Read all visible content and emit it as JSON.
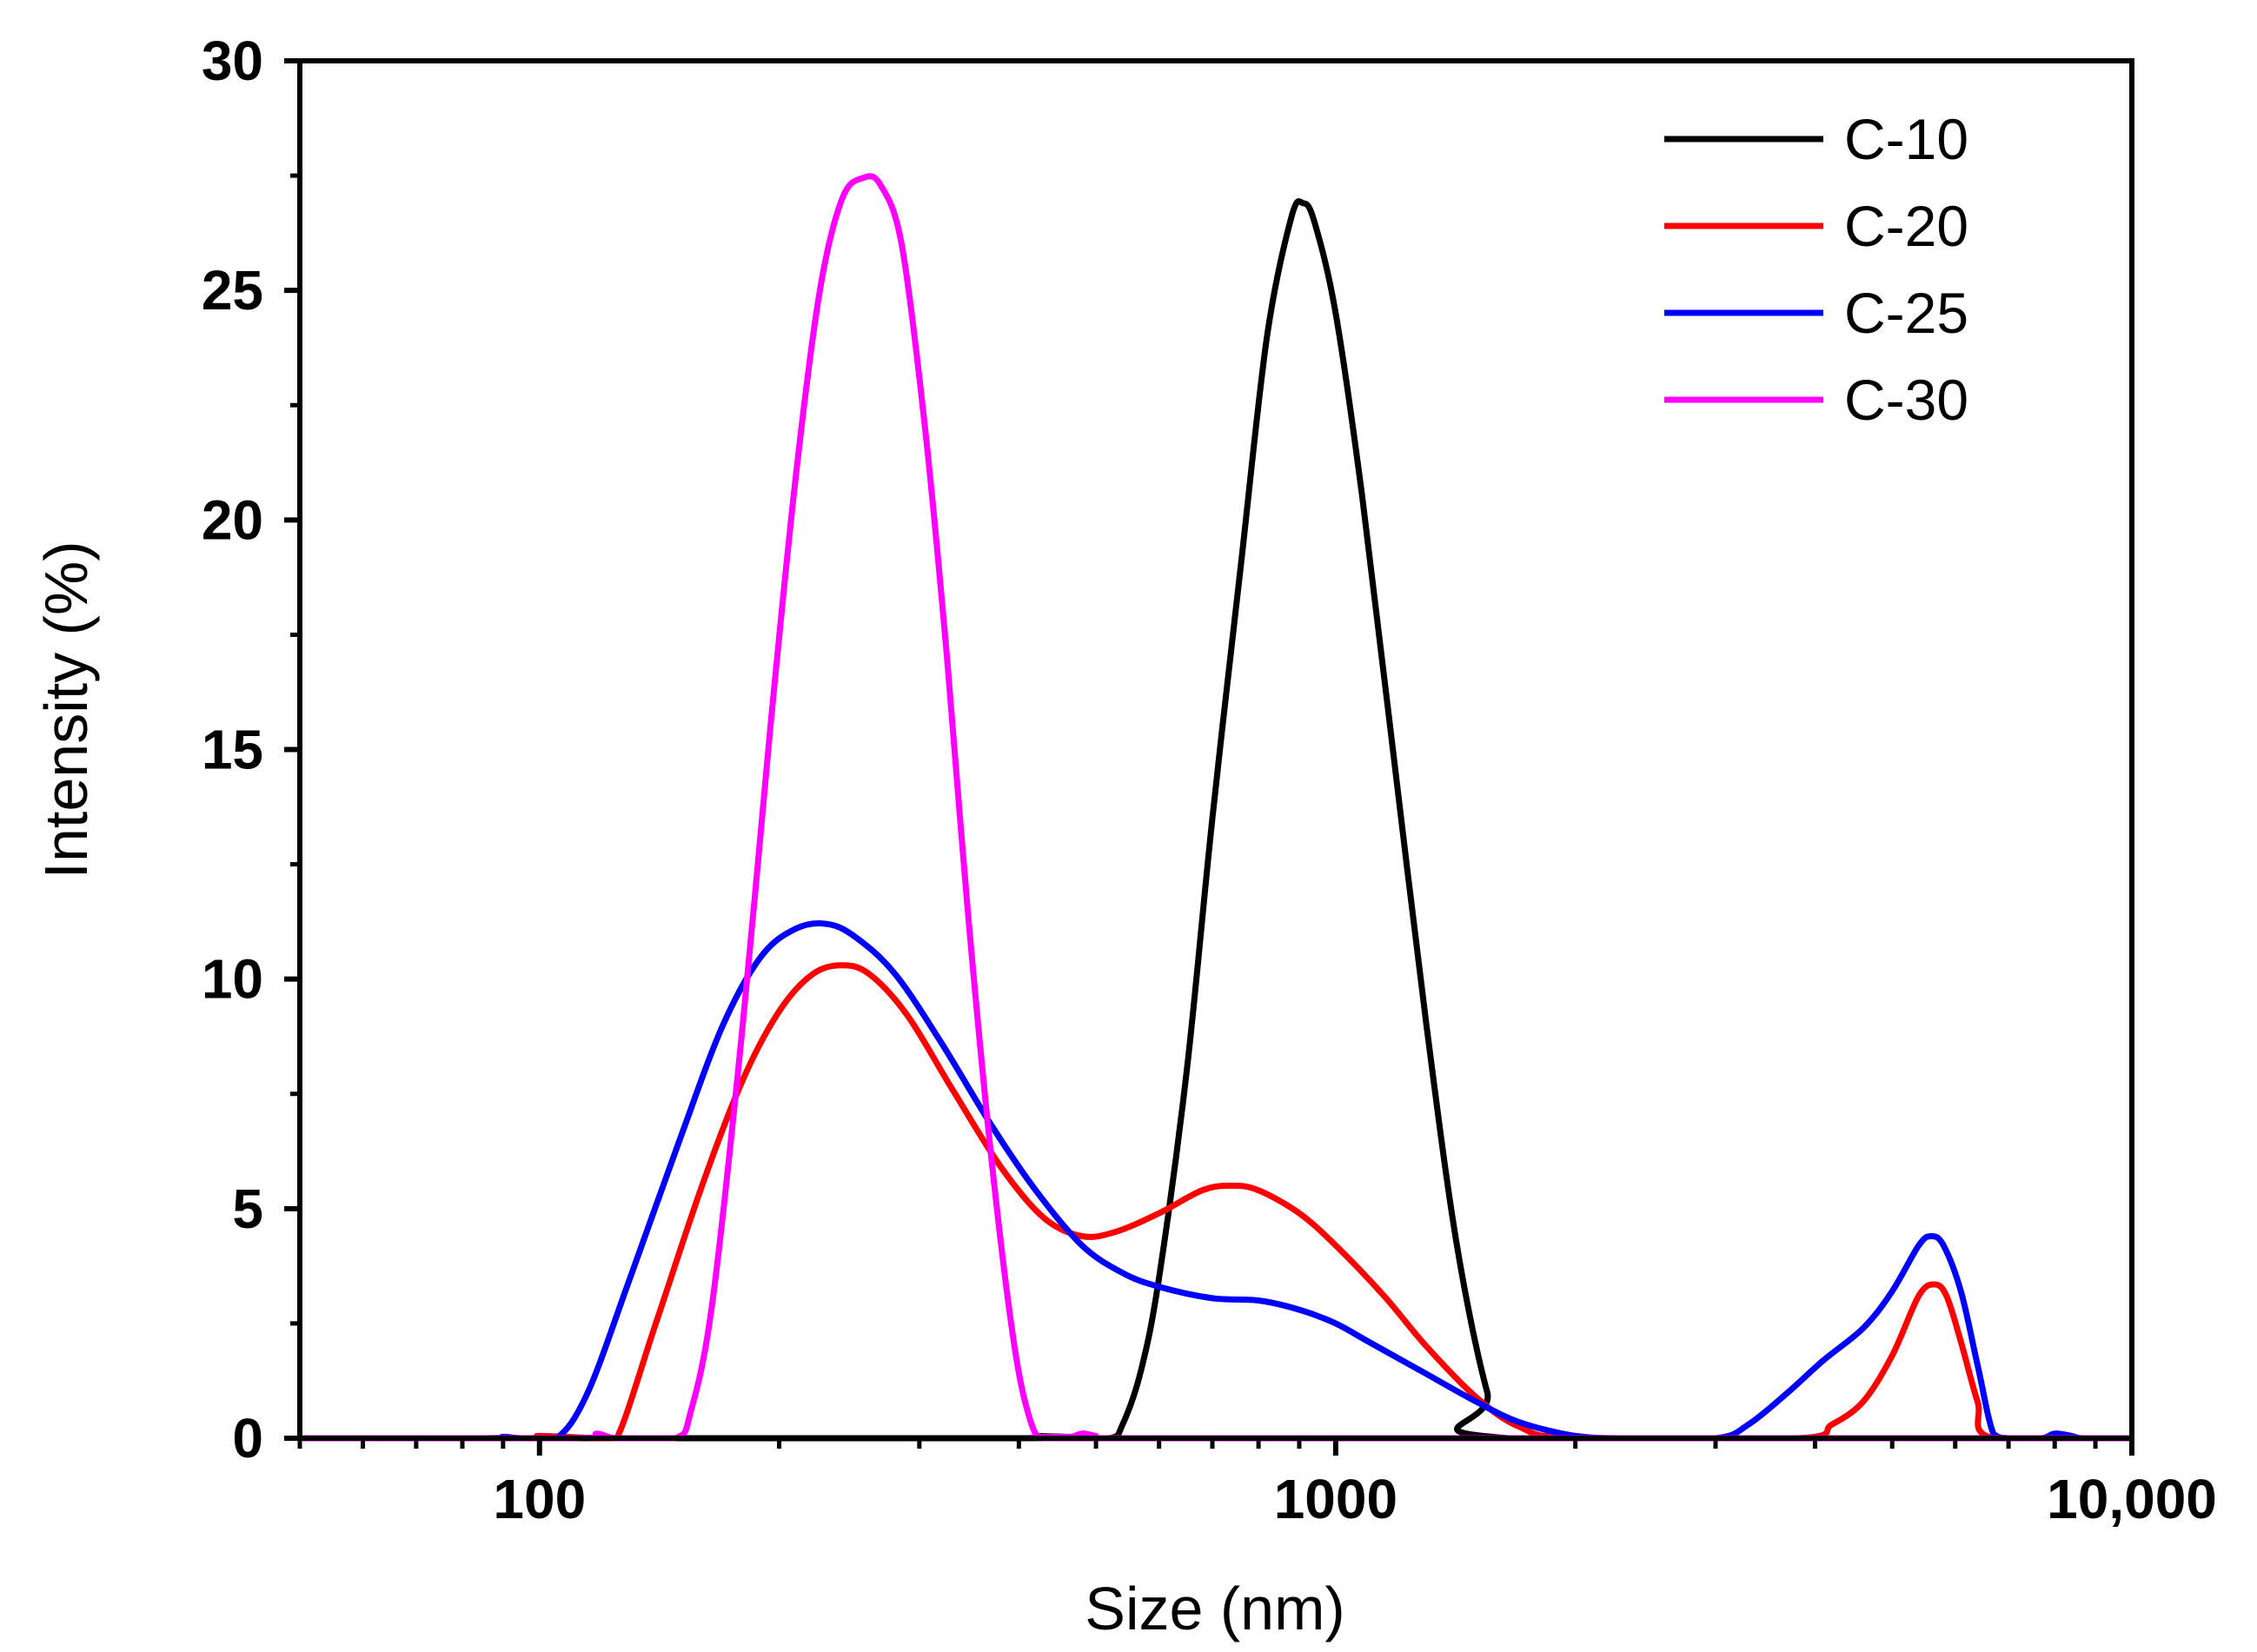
{
  "chart_data": {
    "type": "line",
    "xscale": "log",
    "xlabel": "Size (nm)",
    "ylabel": "Intensity (%)",
    "xlim": [
      50,
      10000
    ],
    "ylim": [
      0,
      30
    ],
    "xticks": [
      {
        "value": 100,
        "label": "100"
      },
      {
        "value": 1000,
        "label": "1000"
      },
      {
        "value": 10000,
        "label": "10,000"
      }
    ],
    "yticks": [
      {
        "value": 0,
        "label": "0"
      },
      {
        "value": 5,
        "label": "5"
      },
      {
        "value": 10,
        "label": "10"
      },
      {
        "value": 15,
        "label": "15"
      },
      {
        "value": 20,
        "label": "20"
      },
      {
        "value": 25,
        "label": "25"
      },
      {
        "value": 30,
        "label": "30"
      }
    ],
    "legend_position": "top-right",
    "series": [
      {
        "name": "C-10",
        "color": "#000000",
        "points": [
          [
            50,
            0
          ],
          [
            400,
            0
          ],
          [
            420,
            0.05
          ],
          [
            450,
            0
          ],
          [
            520,
            0
          ],
          [
            540,
            0.3
          ],
          [
            570,
            1.5
          ],
          [
            600,
            3.5
          ],
          [
            650,
            8
          ],
          [
            700,
            13.5
          ],
          [
            760,
            19
          ],
          [
            820,
            24
          ],
          [
            880,
            26.6
          ],
          [
            910,
            26.9
          ],
          [
            940,
            26.5
          ],
          [
            1000,
            24.5
          ],
          [
            1080,
            20.5
          ],
          [
            1180,
            15
          ],
          [
            1300,
            9
          ],
          [
            1420,
            4.2
          ],
          [
            1550,
            1
          ],
          [
            1650,
            0
          ],
          [
            10000,
            0
          ]
        ]
      },
      {
        "name": "C-20",
        "color": "#ff0000",
        "points": [
          [
            50,
            0
          ],
          [
            95,
            0
          ],
          [
            100,
            0.05
          ],
          [
            118,
            0
          ],
          [
            125,
            0
          ],
          [
            140,
            2.5
          ],
          [
            160,
            5.5
          ],
          [
            180,
            7.8
          ],
          [
            200,
            9.3
          ],
          [
            220,
            10.1
          ],
          [
            240,
            10.3
          ],
          [
            260,
            10.1
          ],
          [
            290,
            9.2
          ],
          [
            330,
            7.6
          ],
          [
            380,
            5.9
          ],
          [
            430,
            4.8
          ],
          [
            480,
            4.4
          ],
          [
            530,
            4.5
          ],
          [
            600,
            4.9
          ],
          [
            680,
            5.4
          ],
          [
            740,
            5.5
          ],
          [
            800,
            5.4
          ],
          [
            900,
            4.9
          ],
          [
            1000,
            4.2
          ],
          [
            1150,
            3.1
          ],
          [
            1300,
            2.0
          ],
          [
            1500,
            0.9
          ],
          [
            1700,
            0.25
          ],
          [
            2000,
            0
          ],
          [
            3800,
            0
          ],
          [
            4200,
            0.3
          ],
          [
            4600,
            0.8
          ],
          [
            5000,
            1.8
          ],
          [
            5400,
            3.1
          ],
          [
            5650,
            3.35
          ],
          [
            5850,
            3.1
          ],
          [
            6100,
            2.1
          ],
          [
            6400,
            0.8
          ],
          [
            6700,
            0
          ],
          [
            10000,
            0
          ]
        ]
      },
      {
        "name": "C-25",
        "color": "#0000ff",
        "points": [
          [
            50,
            0
          ],
          [
            85,
            0
          ],
          [
            90,
            0.03
          ],
          [
            95,
            0
          ],
          [
            105,
            0
          ],
          [
            115,
            1
          ],
          [
            130,
            3.5
          ],
          [
            150,
            6.5
          ],
          [
            170,
            9
          ],
          [
            190,
            10.5
          ],
          [
            210,
            11.1
          ],
          [
            230,
            11.2
          ],
          [
            250,
            10.9
          ],
          [
            280,
            10.1
          ],
          [
            320,
            8.6
          ],
          [
            370,
            6.8
          ],
          [
            420,
            5.4
          ],
          [
            480,
            4.2
          ],
          [
            540,
            3.6
          ],
          [
            600,
            3.3
          ],
          [
            700,
            3.05
          ],
          [
            800,
            3.0
          ],
          [
            900,
            2.8
          ],
          [
            1000,
            2.5
          ],
          [
            1100,
            2.1
          ],
          [
            1300,
            1.4
          ],
          [
            1500,
            0.8
          ],
          [
            1700,
            0.35
          ],
          [
            2000,
            0.05
          ],
          [
            2300,
            0
          ],
          [
            3000,
            0
          ],
          [
            3300,
            0.3
          ],
          [
            3700,
            1
          ],
          [
            4100,
            1.7
          ],
          [
            4600,
            2.4
          ],
          [
            5000,
            3.2
          ],
          [
            5400,
            4.2
          ],
          [
            5600,
            4.4
          ],
          [
            5800,
            4.2
          ],
          [
            6100,
            3.2
          ],
          [
            6400,
            1.6
          ],
          [
            6700,
            0.1
          ],
          [
            7000,
            0
          ],
          [
            7700,
            0
          ],
          [
            8000,
            0.1
          ],
          [
            8400,
            0.05
          ],
          [
            8700,
            0
          ],
          [
            10000,
            0
          ]
        ]
      },
      {
        "name": "C-30",
        "color": "#ff00ff",
        "points": [
          [
            50,
            0
          ],
          [
            110,
            0
          ],
          [
            118,
            0.1
          ],
          [
            125,
            0
          ],
          [
            148,
            0
          ],
          [
            155,
            0.6
          ],
          [
            165,
            3
          ],
          [
            180,
            9
          ],
          [
            195,
            15.5
          ],
          [
            210,
            21
          ],
          [
            225,
            25
          ],
          [
            240,
            27
          ],
          [
            255,
            27.45
          ],
          [
            268,
            27.3
          ],
          [
            285,
            26
          ],
          [
            305,
            22
          ],
          [
            325,
            17
          ],
          [
            345,
            11.5
          ],
          [
            370,
            6
          ],
          [
            395,
            2
          ],
          [
            415,
            0.3
          ],
          [
            430,
            0
          ],
          [
            460,
            0
          ],
          [
            480,
            0.1
          ],
          [
            500,
            0.05
          ],
          [
            520,
            0
          ],
          [
            10000,
            0
          ]
        ]
      }
    ]
  }
}
